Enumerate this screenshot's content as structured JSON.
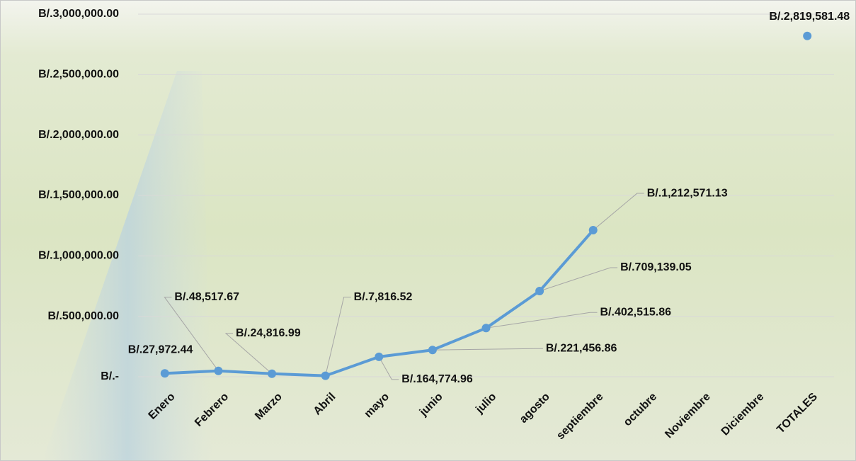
{
  "chart_data": {
    "type": "line",
    "categories": [
      "Enero",
      "Febrero",
      "Marzo",
      "Abril",
      "mayo",
      "junio",
      "julio",
      "agosto",
      "septiembre",
      "octubre",
      "Noviembre",
      "Diciembre",
      "TOTALES"
    ],
    "series": [
      {
        "color": "#5b9bd5",
        "values": [
          27972.44,
          48517.67,
          24816.99,
          7816.52,
          164774.96,
          221456.86,
          402515.86,
          709139.05,
          1212571.13,
          null,
          null,
          null,
          2819581.48
        ],
        "value_labels": [
          "B/.27,972.44",
          "B/.48,517.67",
          "B/.24,816.99",
          "B/.7,816.52",
          "B/.164,774.96",
          "B/.221,456.86",
          "B/.402,515.86",
          "B/.709,139.05",
          "B/.1,212,571.13",
          null,
          null,
          null,
          "B/.2,819,581.48"
        ]
      }
    ],
    "ylim": [
      0,
      3000000
    ],
    "yticks": [
      {
        "value": 0,
        "label": "B/.-"
      },
      {
        "value": 500000,
        "label": "B/.500,000.00"
      },
      {
        "value": 1000000,
        "label": "B/.1,000,000.00"
      },
      {
        "value": 1500000,
        "label": "B/.1,500,000.00"
      },
      {
        "value": 2000000,
        "label": "B/.2,000,000.00"
      },
      {
        "value": 2500000,
        "label": "B/.2,500,000.00"
      },
      {
        "value": 3000000,
        "label": "B/.3,000,000.00"
      }
    ],
    "grid": true
  }
}
